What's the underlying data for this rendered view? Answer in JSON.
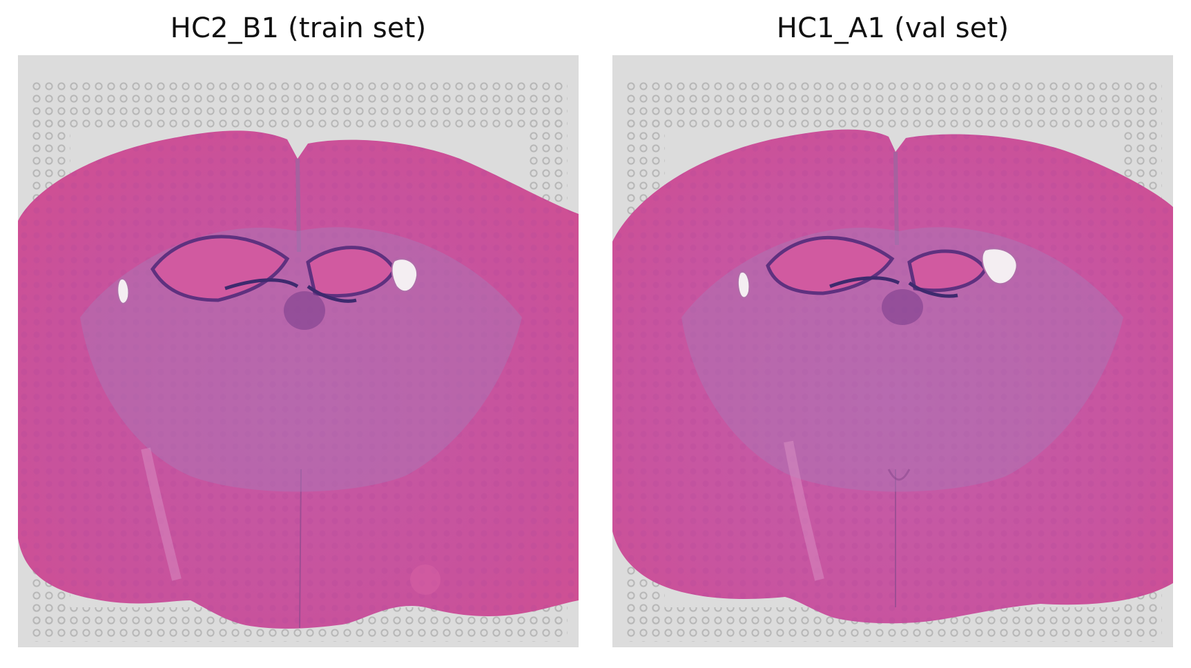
{
  "figure": {
    "panels": [
      {
        "title": "HC2_B1 (train set)"
      },
      {
        "title": "HC1_A1 (val set)"
      }
    ]
  },
  "colors": {
    "background": "#dcdcdc",
    "tissue": "#c94f98",
    "tissue_dark": "#9b4aa0",
    "fiber_tract": "#a97ab9",
    "spot": "#b9b9b9",
    "vessel_white": "#f4eef2"
  }
}
